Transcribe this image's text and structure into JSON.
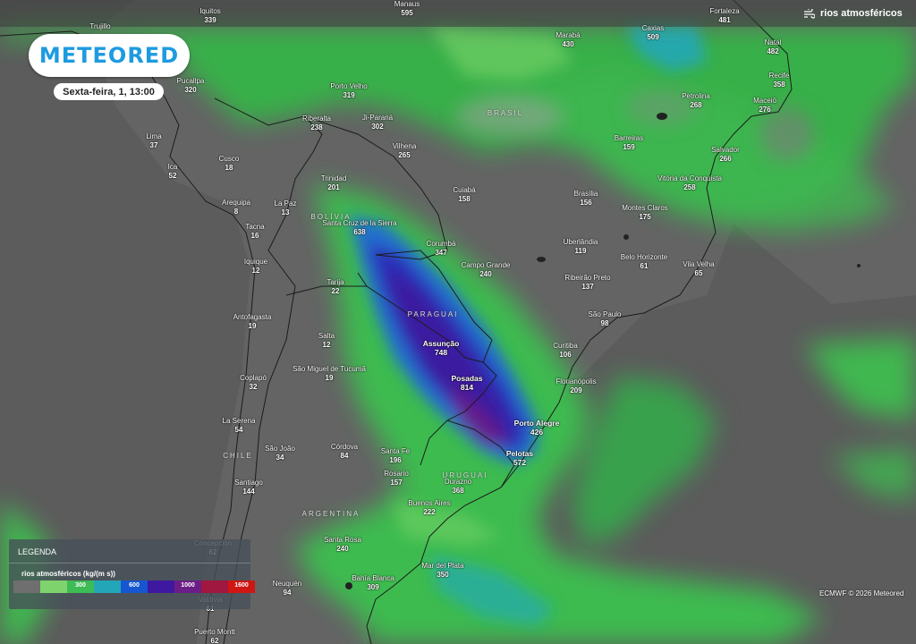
{
  "header": {
    "brand": "METEORED",
    "datetime": "Sexta-feira, 1, 13:00",
    "layer_name": "rios atmosféricos",
    "layer_icon": "wind-icon"
  },
  "countries": [
    {
      "name": "BRASIL",
      "x": 565,
      "y": 122
    },
    {
      "name": "BOLÍVIA",
      "x": 370,
      "y": 238
    },
    {
      "name": "PARAGUAI",
      "x": 484,
      "y": 347
    },
    {
      "name": "URUGUAI",
      "x": 520,
      "y": 527
    },
    {
      "name": "CHILE",
      "x": 266,
      "y": 505
    },
    {
      "name": "ARGENTINA",
      "x": 370,
      "y": 570
    }
  ],
  "cities": [
    {
      "name": "Manaus",
      "value": "595"
    },
    {
      "name": "Iquitos",
      "value": "339"
    },
    {
      "name": "Caxias",
      "value": "509"
    },
    {
      "name": "Fortaleza",
      "value": "481"
    },
    {
      "name": "Trujillo",
      "value": ""
    },
    {
      "name": "Pucallpa",
      "value": "320"
    },
    {
      "name": "Marabá",
      "value": "430"
    },
    {
      "name": "Natal",
      "value": "482"
    },
    {
      "name": "Recife",
      "value": "358"
    },
    {
      "name": "Porto Velho",
      "value": "319"
    },
    {
      "name": "Petrolina",
      "value": "268"
    },
    {
      "name": "Maceió",
      "value": "276"
    },
    {
      "name": "Riberalta",
      "value": "238"
    },
    {
      "name": "Ji-Paraná",
      "value": "302"
    },
    {
      "name": "Lima",
      "value": "37"
    },
    {
      "name": "Barreiras",
      "value": "159"
    },
    {
      "name": "Vilhena",
      "value": "265"
    },
    {
      "name": "Salvador",
      "value": "266"
    },
    {
      "name": "Cusco",
      "value": "18"
    },
    {
      "name": "Ica",
      "value": "52"
    },
    {
      "name": "Vitória da Conquista",
      "value": "258"
    },
    {
      "name": "Trinidad",
      "value": "201"
    },
    {
      "name": "Cuiabá",
      "value": "158"
    },
    {
      "name": "Brasília",
      "value": "156"
    },
    {
      "name": "Arequipa",
      "value": "8"
    },
    {
      "name": "La Paz",
      "value": "13"
    },
    {
      "name": "Montes Claros",
      "value": "175"
    },
    {
      "name": "Santa Cruz de la Sierra",
      "value": "638"
    },
    {
      "name": "Tacna",
      "value": "16"
    },
    {
      "name": "Uberlândia",
      "value": "119"
    },
    {
      "name": "Corumbá",
      "value": "347"
    },
    {
      "name": "Belo Horizonte",
      "value": "61"
    },
    {
      "name": "Iquique",
      "value": "12"
    },
    {
      "name": "Campo Grande",
      "value": "240"
    },
    {
      "name": "Vila Velha",
      "value": "65"
    },
    {
      "name": "Ribeirão Preto",
      "value": "137"
    },
    {
      "name": "Tarija",
      "value": "22"
    },
    {
      "name": "São Paulo",
      "value": "98"
    },
    {
      "name": "Antofagasta",
      "value": "19"
    },
    {
      "name": "Salta",
      "value": "12"
    },
    {
      "name": "Assunção",
      "value": "748"
    },
    {
      "name": "Curitiba",
      "value": "106"
    },
    {
      "name": "São Miguel de Tucumã",
      "value": "19"
    },
    {
      "name": "Posadas",
      "value": "814"
    },
    {
      "name": "Coplapó",
      "value": "32"
    },
    {
      "name": "Florianópolis",
      "value": "209"
    },
    {
      "name": "La Serena",
      "value": "54"
    },
    {
      "name": "Porto Alegre",
      "value": "426"
    },
    {
      "name": "São João",
      "value": "34"
    },
    {
      "name": "Córdova",
      "value": "84"
    },
    {
      "name": "Santa Fe",
      "value": "196"
    },
    {
      "name": "Pelotas",
      "value": "572"
    },
    {
      "name": "Rosario",
      "value": "157"
    },
    {
      "name": "Santiago",
      "value": "144"
    },
    {
      "name": "Durazno",
      "value": "368"
    },
    {
      "name": "Buenos Aires",
      "value": "222"
    },
    {
      "name": "Santa Rosa",
      "value": "240"
    },
    {
      "name": "Concepción",
      "value": "62"
    },
    {
      "name": "Mar del Plata",
      "value": "350"
    },
    {
      "name": "Bahía Blanca",
      "value": "309"
    },
    {
      "name": "Neuquén",
      "value": "94"
    },
    {
      "name": "Valdivia",
      "value": "61"
    },
    {
      "name": "Puerto Montt",
      "value": "62"
    }
  ],
  "legend": {
    "title": "LEGENDA",
    "subtitle": "rios atmosféricos (kg/(m s))",
    "ticks": [
      "300",
      "600",
      "1000",
      "1600"
    ],
    "colors": [
      "#6f6f6f",
      "#7fd36d",
      "#3dbb55",
      "#22a6b8",
      "#1656d0",
      "#3f18a0",
      "#6b1e86",
      "#a0173f",
      "#d01612"
    ]
  },
  "credit": "ECMWF © 2026 Meteored"
}
